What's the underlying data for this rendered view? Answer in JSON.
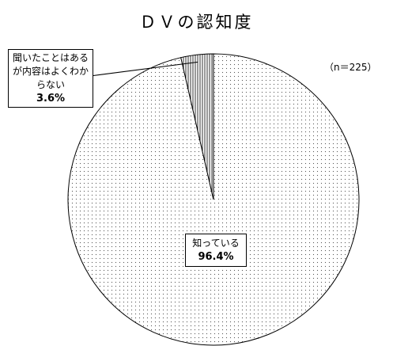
{
  "chart_data": {
    "type": "pie",
    "title": "ＤＶの認知度",
    "annotation": "（n＝225）",
    "categories": [
      "知っている",
      "聞いたことはあるが内容はよくわからない"
    ],
    "values": [
      96.4,
      3.6
    ],
    "value_labels": [
      "96.4%",
      "3.6%"
    ]
  }
}
